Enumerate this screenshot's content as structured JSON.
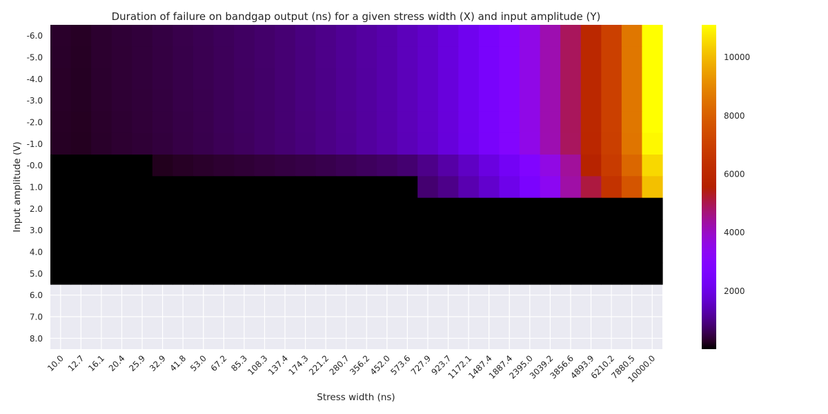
{
  "chart_data": {
    "type": "heatmap",
    "title": "Duration of failure on bandgap output (ns) for a given stress width (X) and input amplitude (Y)",
    "xlabel": "Stress width (ns)",
    "ylabel": "Input amplitude (V)",
    "x_categories": [
      "10.0",
      "12.7",
      "16.1",
      "20.4",
      "25.9",
      "32.9",
      "41.8",
      "53.0",
      "67.2",
      "85.3",
      "108.3",
      "137.4",
      "174.3",
      "221.2",
      "280.7",
      "356.2",
      "452.0",
      "573.6",
      "727.9",
      "923.7",
      "1172.1",
      "1487.4",
      "1887.4",
      "2395.0",
      "3039.2",
      "3856.6",
      "4893.9",
      "6210.2",
      "7880.5",
      "10000.0"
    ],
    "y_categories": [
      "-6.0",
      "-5.0",
      "-4.0",
      "-3.0",
      "-2.0",
      "-1.0",
      "-0.0",
      "1.0",
      "2.0",
      "3.0",
      "4.0",
      "5.0",
      "6.0",
      "7.0",
      "8.0"
    ],
    "colorbar": {
      "ticks": [
        2000,
        4000,
        6000,
        8000,
        10000
      ],
      "range": [
        0,
        11100
      ],
      "colormap": "gnuplot"
    },
    "grid": true,
    "values": [
      [
        300,
        260,
        330,
        380,
        410,
        470,
        530,
        580,
        640,
        700,
        760,
        830,
        920,
        1000,
        1100,
        1200,
        1300,
        1450,
        1600,
        1850,
        2150,
        2500,
        2950,
        3550,
        4200,
        4900,
        6000,
        7000,
        8600,
        11100
      ],
      [
        290,
        250,
        330,
        370,
        410,
        460,
        520,
        570,
        630,
        700,
        760,
        830,
        910,
        1000,
        1100,
        1200,
        1300,
        1450,
        1600,
        1850,
        2150,
        2500,
        2950,
        3550,
        4200,
        4900,
        6000,
        7000,
        8600,
        11100
      ],
      [
        280,
        240,
        320,
        370,
        410,
        460,
        520,
        570,
        630,
        690,
        750,
        830,
        910,
        990,
        1090,
        1190,
        1300,
        1440,
        1600,
        1840,
        2140,
        2500,
        2950,
        3550,
        4200,
        4900,
        6000,
        7000,
        8600,
        11100
      ],
      [
        270,
        240,
        310,
        360,
        400,
        450,
        510,
        560,
        620,
        690,
        750,
        820,
        910,
        990,
        1090,
        1190,
        1300,
        1440,
        1600,
        1840,
        2140,
        2500,
        2950,
        3550,
        4200,
        4900,
        6000,
        7000,
        8600,
        11100
      ],
      [
        260,
        230,
        300,
        350,
        390,
        440,
        500,
        550,
        620,
        680,
        740,
        820,
        900,
        980,
        1080,
        1180,
        1290,
        1430,
        1590,
        1830,
        2130,
        2490,
        2940,
        3540,
        4200,
        4900,
        6000,
        7000,
        8600,
        11100
      ],
      [
        250,
        220,
        290,
        340,
        380,
        430,
        490,
        540,
        610,
        670,
        740,
        810,
        890,
        980,
        1070,
        1180,
        1280,
        1420,
        1580,
        1820,
        2120,
        2480,
        2930,
        3530,
        4190,
        4880,
        5950,
        6950,
        8550,
        11000
      ],
      [
        0,
        0,
        0,
        0,
        0,
        200,
        260,
        300,
        340,
        380,
        420,
        460,
        500,
        540,
        600,
        660,
        720,
        800,
        1000,
        1250,
        1550,
        1900,
        2300,
        2850,
        3600,
        4400,
        5700,
        6800,
        8200,
        10500
      ],
      [
        0,
        0,
        0,
        0,
        0,
        0,
        0,
        0,
        0,
        0,
        0,
        0,
        0,
        0,
        0,
        0,
        0,
        0,
        800,
        1000,
        1350,
        1650,
        2050,
        2600,
        3350,
        4300,
        5100,
        6500,
        7700,
        10100
      ],
      [
        0,
        0,
        0,
        0,
        0,
        0,
        0,
        0,
        0,
        0,
        0,
        0,
        0,
        0,
        0,
        0,
        0,
        0,
        0,
        0,
        0,
        0,
        0,
        0,
        0,
        0,
        0,
        0,
        0,
        0
      ],
      [
        0,
        0,
        0,
        0,
        0,
        0,
        0,
        0,
        0,
        0,
        0,
        0,
        0,
        0,
        0,
        0,
        0,
        0,
        0,
        0,
        0,
        0,
        0,
        0,
        0,
        0,
        0,
        0,
        0,
        0
      ],
      [
        0,
        0,
        0,
        0,
        0,
        0,
        0,
        0,
        0,
        0,
        0,
        0,
        0,
        0,
        0,
        0,
        0,
        0,
        0,
        0,
        0,
        0,
        0,
        0,
        0,
        0,
        0,
        0,
        0,
        0
      ],
      [
        0,
        0,
        0,
        0,
        0,
        0,
        0,
        0,
        0,
        0,
        0,
        0,
        0,
        0,
        0,
        0,
        0,
        0,
        0,
        0,
        0,
        0,
        0,
        0,
        0,
        0,
        0,
        0,
        0,
        0
      ],
      [
        null,
        null,
        null,
        null,
        null,
        null,
        null,
        null,
        null,
        null,
        null,
        null,
        null,
        null,
        null,
        null,
        null,
        null,
        null,
        null,
        null,
        null,
        null,
        null,
        null,
        null,
        null,
        null,
        null,
        null
      ],
      [
        null,
        null,
        null,
        null,
        null,
        null,
        null,
        null,
        null,
        null,
        null,
        null,
        null,
        null,
        null,
        null,
        null,
        null,
        null,
        null,
        null,
        null,
        null,
        null,
        null,
        null,
        null,
        null,
        null,
        null
      ],
      [
        null,
        null,
        null,
        null,
        null,
        null,
        null,
        null,
        null,
        null,
        null,
        null,
        null,
        null,
        null,
        null,
        null,
        null,
        null,
        null,
        null,
        null,
        null,
        null,
        null,
        null,
        null,
        null,
        null,
        null
      ]
    ]
  }
}
